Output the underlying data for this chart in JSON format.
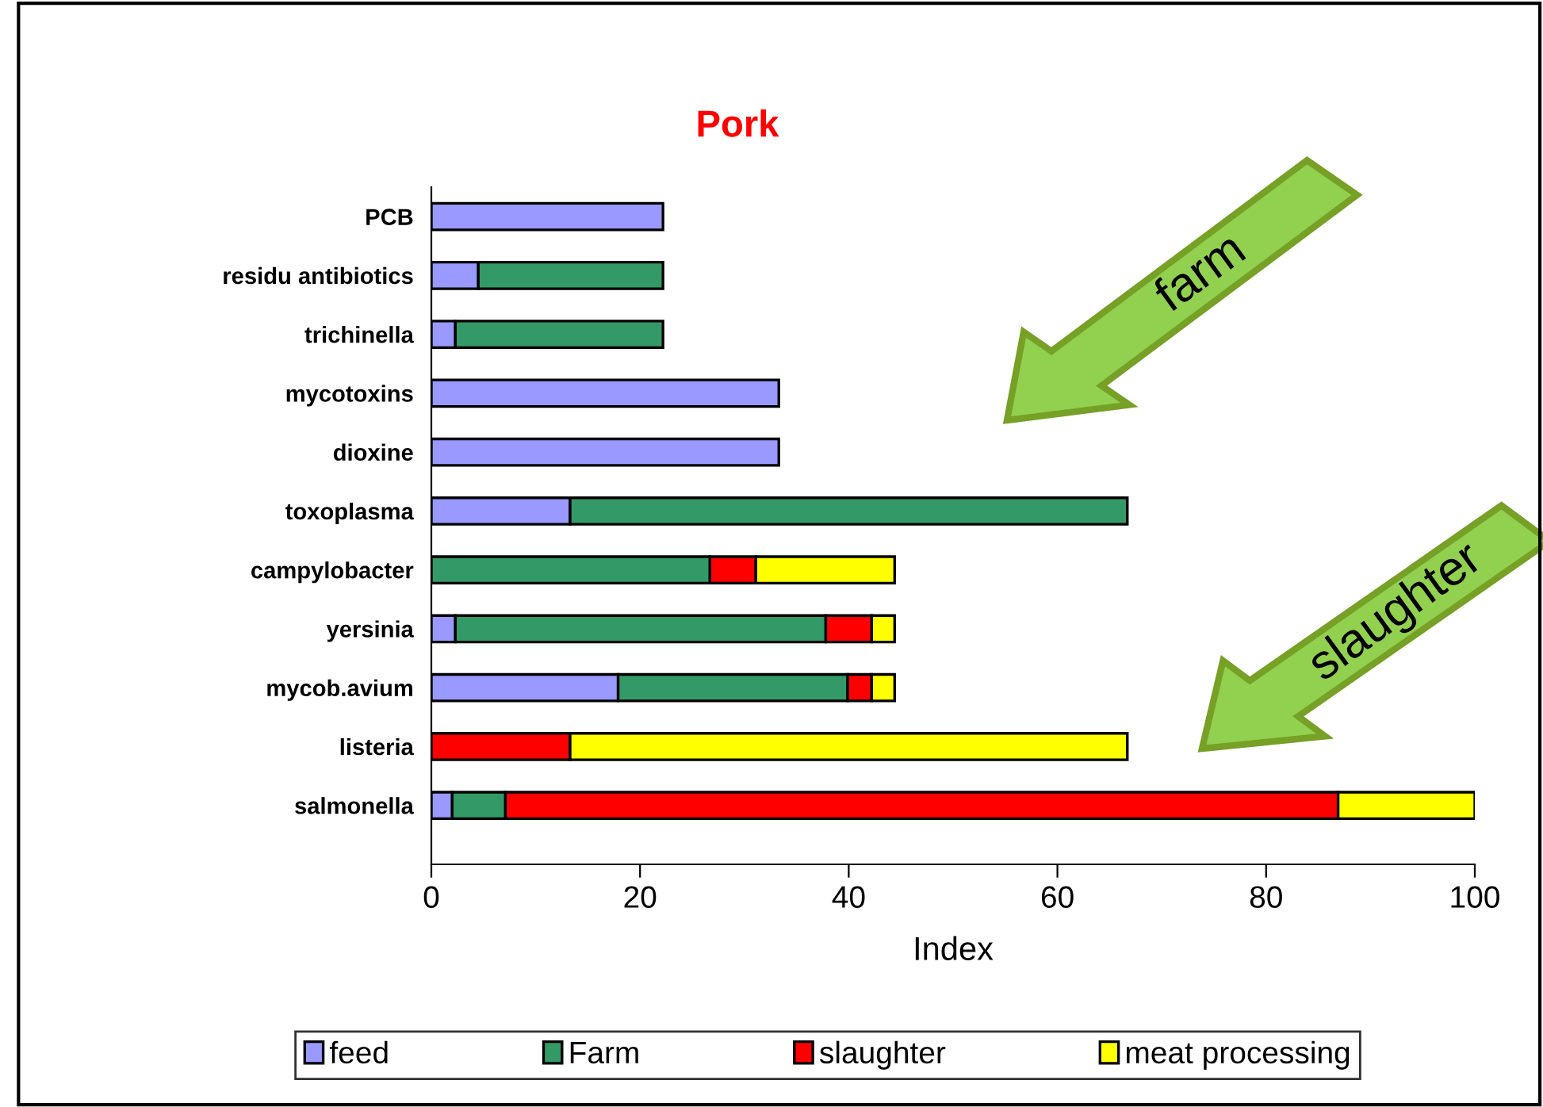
{
  "chart_data": {
    "type": "bar",
    "orientation": "horizontal",
    "stacked": true,
    "title": "Pork",
    "xlabel": "Index",
    "categories": [
      "PCB",
      "residu antibiotics",
      "trichinella",
      "mycotoxins",
      "dioxine",
      "toxoplasma",
      "campylobacter",
      "yersinia",
      "mycob.avium",
      "listeria",
      "salmonella"
    ],
    "series": [
      {
        "name": "feed",
        "color": "#9999ff",
        "values": [
          22.2,
          4.5,
          2.3,
          33.3,
          33.3,
          13.3,
          null,
          2.3,
          17.9,
          null,
          2.0
        ]
      },
      {
        "name": "Farm",
        "color": "#339966",
        "values": [
          null,
          17.7,
          19.9,
          null,
          null,
          53.4,
          26.7,
          35.5,
          22.0,
          null,
          5.1
        ]
      },
      {
        "name": "slaughter",
        "color": "#ff0000",
        "values": [
          null,
          null,
          null,
          null,
          null,
          null,
          4.4,
          4.4,
          2.3,
          13.3,
          79.8
        ]
      },
      {
        "name": "meat processing",
        "color": "#ffff00",
        "values": [
          null,
          null,
          null,
          null,
          null,
          null,
          13.3,
          2.2,
          2.2,
          53.4,
          13.1
        ]
      }
    ],
    "xlim": [
      0,
      100
    ],
    "xticks": [
      0,
      20,
      40,
      60,
      80,
      100
    ],
    "grid": false,
    "legend": "bottom",
    "annotations": [
      "farm",
      "slaughter"
    ]
  }
}
